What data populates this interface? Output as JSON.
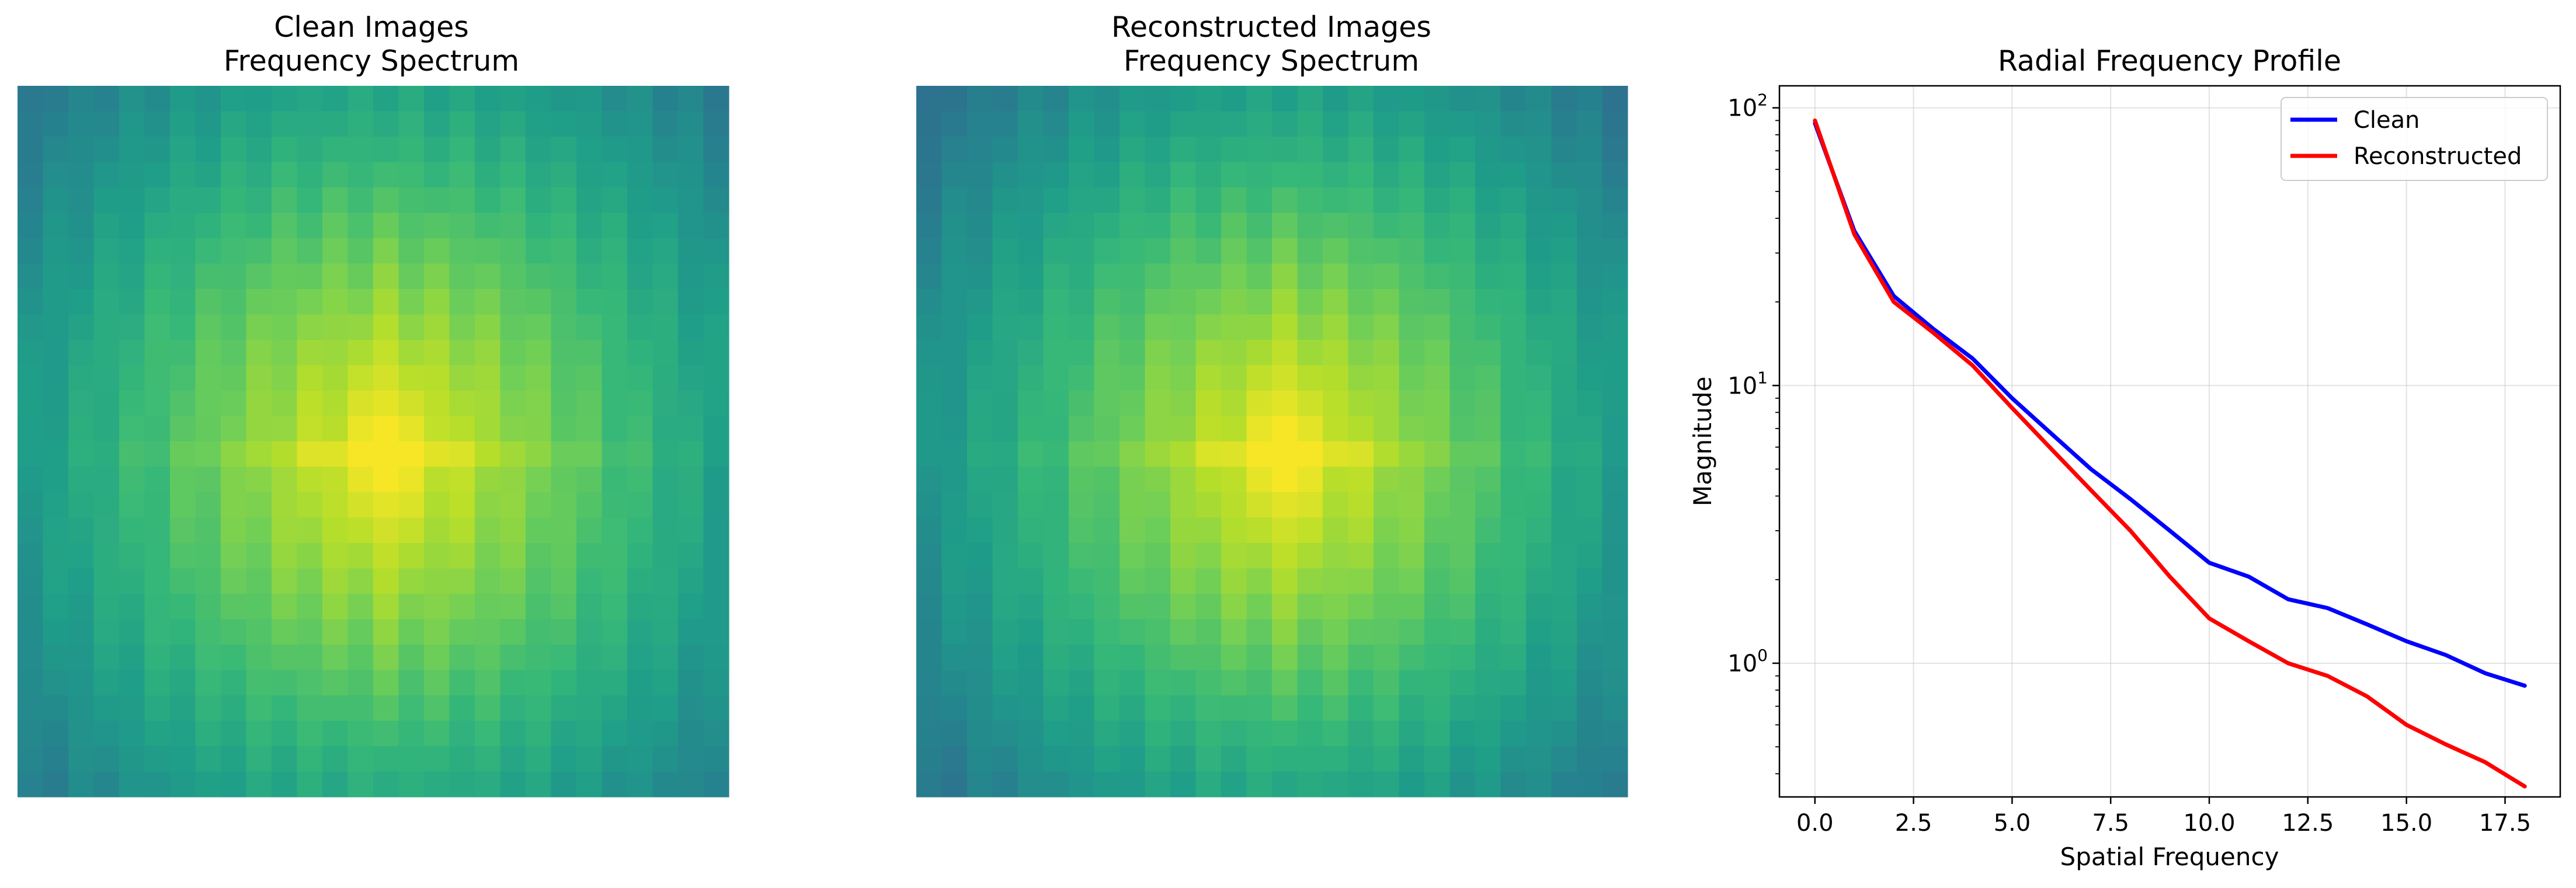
{
  "chart_data": [
    {
      "type": "heatmap",
      "title_line1": "Clean Images",
      "title_line2": "Frequency Spectrum",
      "colormap": "viridis",
      "grid_size": [
        28,
        28
      ],
      "spread": [
        8.0,
        7.0
      ],
      "peak_cell": [
        14,
        14
      ],
      "axes": "off"
    },
    {
      "type": "heatmap",
      "title_line1": "Reconstructed Images",
      "title_line2": "Frequency Spectrum",
      "colormap": "viridis",
      "grid_size": [
        28,
        28
      ],
      "spread": [
        7.6,
        6.6
      ],
      "peak_cell": [
        14,
        14
      ],
      "axes": "off"
    },
    {
      "type": "line",
      "title": "Radial Frequency Profile",
      "xlabel": "Spatial Frequency",
      "ylabel": "Magnitude",
      "yscale": "log",
      "xlim": [
        -0.9,
        18.9
      ],
      "ylim": [
        0.33,
        120
      ],
      "xticks": [
        0.0,
        2.5,
        5.0,
        7.5,
        10.0,
        12.5,
        15.0,
        17.5
      ],
      "xtick_labels": [
        "0.0",
        "2.5",
        "5.0",
        "7.5",
        "10.0",
        "12.5",
        "15.0",
        "17.5"
      ],
      "yticks": [
        1,
        10,
        100
      ],
      "ytick_bases": [
        "10",
        "10",
        "10"
      ],
      "ytick_exponents": [
        "0",
        "1",
        "2"
      ],
      "grid": true,
      "legend_position": "top-right",
      "x": [
        0,
        1,
        2,
        3,
        4,
        5,
        6,
        7,
        8,
        9,
        10,
        11,
        12,
        13,
        14,
        15,
        16,
        17,
        18
      ],
      "series": [
        {
          "name": "Clean",
          "color": "#0000ff",
          "values": [
            88,
            36,
            21,
            16,
            12.5,
            9,
            6.7,
            5.0,
            3.9,
            3.0,
            2.3,
            2.05,
            1.7,
            1.58,
            1.38,
            1.2,
            1.07,
            0.92,
            0.83
          ]
        },
        {
          "name": "Reconstructed",
          "color": "#ff0000",
          "values": [
            90,
            35,
            20,
            15.5,
            11.8,
            8.3,
            5.9,
            4.2,
            3.0,
            2.05,
            1.45,
            1.2,
            1.0,
            0.9,
            0.76,
            0.6,
            0.51,
            0.44,
            0.36
          ]
        }
      ]
    }
  ]
}
